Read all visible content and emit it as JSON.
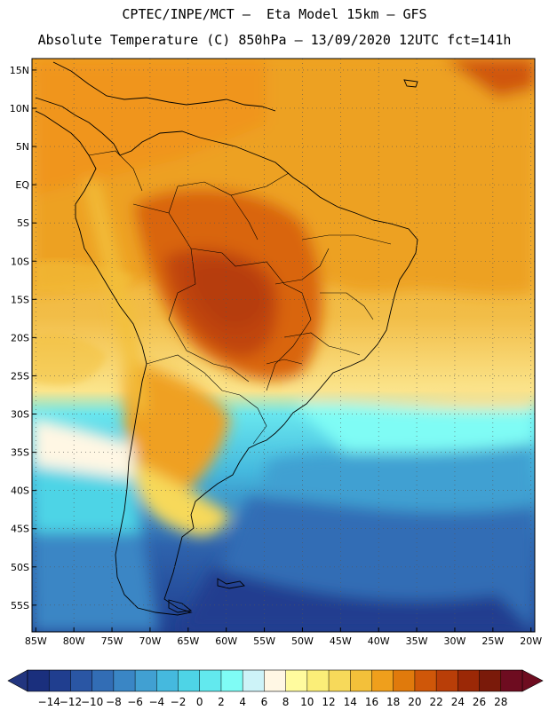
{
  "header": {
    "line1": "CPTEC/INPE/MCT –  Eta Model 15km – GFS",
    "line2": "Absolute Temperature (C) 850hPa – 13/09/2020 12UTC fct=141h"
  },
  "map": {
    "lat_labels": [
      "15N",
      "10N",
      "5N",
      "EQ",
      "5S",
      "10S",
      "15S",
      "20S",
      "25S",
      "30S",
      "35S",
      "40S",
      "45S",
      "50S",
      "55S"
    ],
    "lat_values": [
      15,
      10,
      5,
      0,
      -5,
      -10,
      -15,
      -20,
      -25,
      -30,
      -35,
      -40,
      -45,
      -50,
      -55
    ],
    "lon_labels": [
      "85W",
      "80W",
      "75W",
      "70W",
      "65W",
      "60W",
      "55W",
      "50W",
      "45W",
      "40W",
      "35W",
      "30W",
      "25W",
      "20W"
    ],
    "lon_values": [
      -85,
      -80,
      -75,
      -70,
      -65,
      -60,
      -55,
      -50,
      -45,
      -40,
      -35,
      -30,
      -25,
      -20
    ],
    "extent": {
      "lon_min": -85.5,
      "lon_max": -19.5,
      "lat_min": -58.5,
      "lat_max": 16.5
    }
  },
  "colorbar": {
    "labels": [
      "-14",
      "-12",
      "-10",
      "-8",
      "-6",
      "-4",
      "-2",
      "0",
      "2",
      "4",
      "6",
      "8",
      "10",
      "12",
      "14",
      "16",
      "18",
      "20",
      "22",
      "24",
      "26",
      "28"
    ],
    "colors": [
      "#1a2f7d",
      "#203e8f",
      "#2a56a4",
      "#326db5",
      "#3a86c5",
      "#41a0d2",
      "#45b9de",
      "#4ed4e6",
      "#62e9ee",
      "#7ffcf5",
      "#cdf3f8",
      "#fff7e4",
      "#fffb9e",
      "#fbee78",
      "#f7d95a",
      "#f3c03a",
      "#ef9f1c",
      "#e07a0c",
      "#cf5709",
      "#b93e08",
      "#9b2806",
      "#7a1a0a",
      "#6e0c20"
    ],
    "under_color": "#22357f",
    "over_color": "#6e0c20"
  }
}
